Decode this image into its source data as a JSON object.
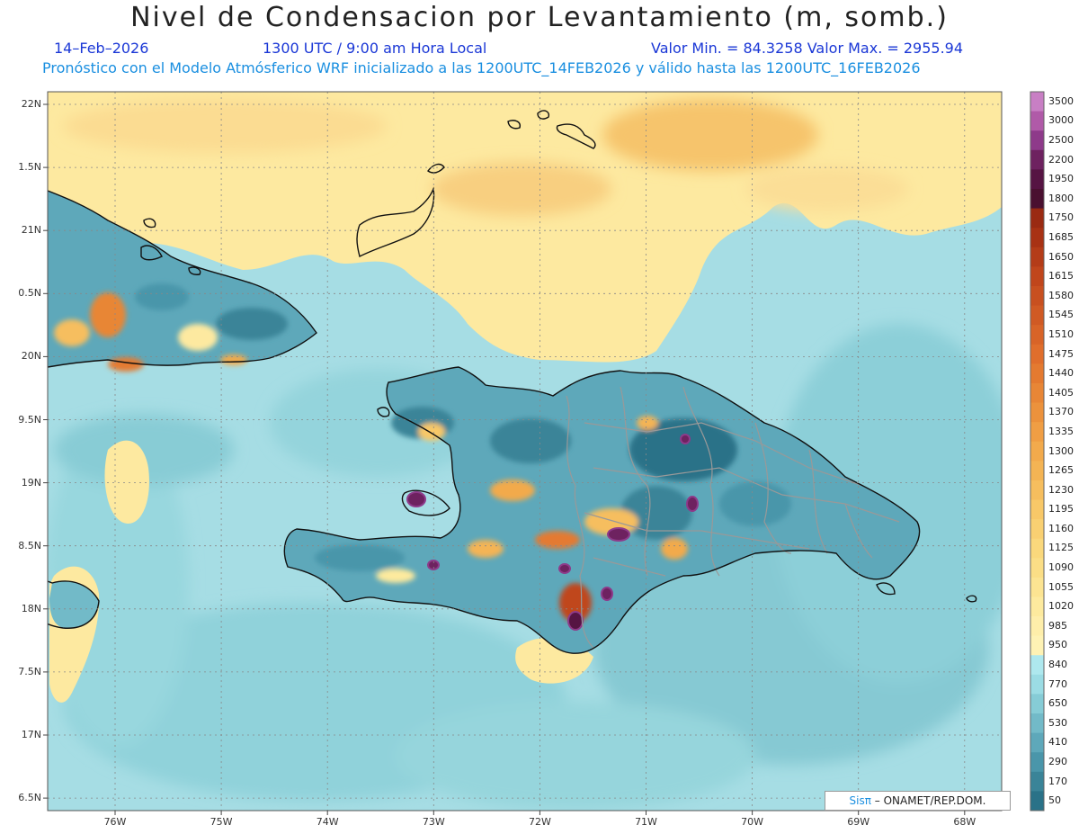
{
  "title": "Nivel de Condensacion por Levantamiento (m, somb.)",
  "header": {
    "date": "14–Feb–2026",
    "time": "1300 UTC / 9:00 am Hora Local",
    "minmax": "Valor Min. = 84.3258   Valor Max. = 2955.94",
    "subtitle": "Pronóstico con el Modelo Atmósferico WRF inicializado a las 1200UTC_14FEB2026 y válido hasta las  1200UTC_16FEB2026"
  },
  "axes": {
    "lat_labels": [
      "22N",
      "1.5N",
      "21N",
      "0.5N",
      "20N",
      "9.5N",
      "19N",
      "8.5N",
      "18N",
      "7.5N",
      "17N",
      "6.5N"
    ],
    "lon_labels": [
      "76W",
      "75W",
      "74W",
      "73W",
      "72W",
      "71W",
      "70W",
      "69W",
      "68W"
    ],
    "lat_range": [
      16.5,
      22.1
    ],
    "lon_range": [
      -76.6,
      -67.6
    ]
  },
  "colorbar": {
    "labels": [
      "3500",
      "3000",
      "2500",
      "2200",
      "1950",
      "1800",
      "1750",
      "1685",
      "1650",
      "1615",
      "1580",
      "1545",
      "1510",
      "1475",
      "1440",
      "1405",
      "1370",
      "1335",
      "1300",
      "1265",
      "1230",
      "1195",
      "1160",
      "1125",
      "1090",
      "1055",
      "1020",
      "985",
      "950",
      "840",
      "770",
      "650",
      "530",
      "410",
      "290",
      "170",
      "50"
    ],
    "colors": [
      "#c87fc4",
      "#b05aa8",
      "#8e3a8a",
      "#6e2260",
      "#561443",
      "#4a1030",
      "#9a2a12",
      "#a83214",
      "#b43c18",
      "#c0461c",
      "#c85020",
      "#d05a24",
      "#d86428",
      "#e06e2c",
      "#e47a30",
      "#e88636",
      "#ec923c",
      "#f09e44",
      "#f2aa4c",
      "#f4b454",
      "#f6be5e",
      "#f8c868",
      "#f9d072",
      "#fad87c",
      "#fbde86",
      "#fce492",
      "#fdea9e",
      "#feeeaa",
      "#fef2b4",
      "#aee8ee",
      "#9bdce4",
      "#86ccd6",
      "#72bac8",
      "#5ea8ba",
      "#4a96aa",
      "#3a8498",
      "#2a7288"
    ]
  },
  "credit": {
    "sis": "Sisπ",
    "org": "– ONAMET/REP.DOM."
  },
  "colors": {
    "ocean": "#a6dde4",
    "north_band": "#fde9a0",
    "coast": "#111111",
    "province": "#999999",
    "grid": "#888888"
  }
}
